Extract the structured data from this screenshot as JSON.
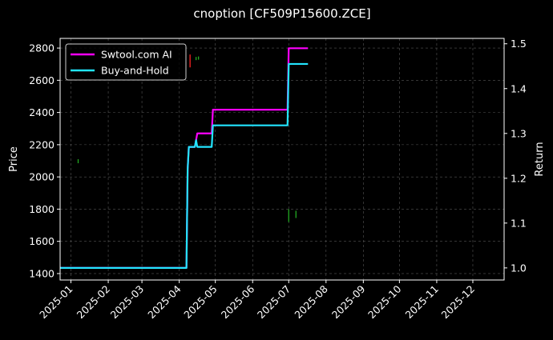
{
  "chart_data": {
    "type": "line",
    "title": "cnoption [CF509P15600.ZCE]",
    "xlabel": "",
    "ylabel": "Price",
    "y2label": "Return",
    "xlim": [
      "2024-12-23",
      "2025-12-27"
    ],
    "ylim": [
      1360,
      2860
    ],
    "y2lim": [
      0.973,
      1.512
    ],
    "x_ticks": [
      "2025-01",
      "2025-02",
      "2025-03",
      "2025-04",
      "2025-05",
      "2025-06",
      "2025-07",
      "2025-08",
      "2025-09",
      "2025-10",
      "2025-11",
      "2025-12"
    ],
    "y_ticks": [
      1400,
      1600,
      1800,
      2000,
      2200,
      2400,
      2600,
      2800
    ],
    "y2_ticks": [
      "1.0",
      "1.1",
      "1.2",
      "1.3",
      "1.4",
      "1.5"
    ],
    "grid": true,
    "legend_position": "top-left",
    "series": [
      {
        "name": "Swtool.com AI",
        "axis": "return",
        "color": "#ff00ff",
        "points": [
          [
            "2024-12-23",
            1.0
          ],
          [
            "2025-04-07",
            1.0
          ],
          [
            "2025-04-08",
            1.22
          ],
          [
            "2025-04-09",
            1.27
          ],
          [
            "2025-04-14",
            1.27
          ],
          [
            "2025-04-16",
            1.3
          ],
          [
            "2025-04-28",
            1.3
          ],
          [
            "2025-04-29",
            1.353
          ],
          [
            "2025-06-30",
            1.353
          ],
          [
            "2025-07-01",
            1.49
          ],
          [
            "2025-07-17",
            1.49
          ]
        ]
      },
      {
        "name": "Buy-and-Hold",
        "axis": "return",
        "color": "#22e5ff",
        "points": [
          [
            "2024-12-23",
            1.0
          ],
          [
            "2025-04-07",
            1.0
          ],
          [
            "2025-04-08",
            1.22
          ],
          [
            "2025-04-09",
            1.27
          ],
          [
            "2025-04-14",
            1.27
          ],
          [
            "2025-04-15",
            1.285
          ],
          [
            "2025-04-16",
            1.27
          ],
          [
            "2025-04-28",
            1.27
          ],
          [
            "2025-04-29",
            1.318
          ],
          [
            "2025-06-30",
            1.318
          ],
          [
            "2025-07-01",
            1.455
          ],
          [
            "2025-07-17",
            1.455
          ]
        ]
      }
    ],
    "price_marks": [
      {
        "date": "2025-01-07",
        "low": 2085,
        "high": 2110,
        "color": "#22aa22"
      },
      {
        "date": "2025-04-10",
        "low": 2680,
        "high": 2760,
        "color": "#ff2222"
      },
      {
        "date": "2025-04-15",
        "low": 2725,
        "high": 2745,
        "color": "#22aa22"
      },
      {
        "date": "2025-04-17",
        "low": 2728,
        "high": 2748,
        "color": "#22aa22"
      },
      {
        "date": "2025-07-01",
        "low": 1720,
        "high": 1800,
        "color": "#22aa22"
      },
      {
        "date": "2025-07-07",
        "low": 1745,
        "high": 1790,
        "color": "#22aa22"
      }
    ]
  }
}
